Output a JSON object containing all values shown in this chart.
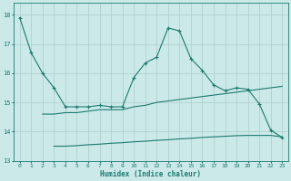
{
  "xlabel": "Humidex (Indice chaleur)",
  "bg_color": "#cce9e9",
  "line_color": "#1a7a6e",
  "grid_color": "#b0d0d0",
  "xlim": [
    -0.5,
    23.5
  ],
  "ylim": [
    13.0,
    18.4
  ],
  "yticks": [
    13,
    14,
    15,
    16,
    17,
    18
  ],
  "xticks": [
    0,
    1,
    2,
    3,
    4,
    5,
    6,
    7,
    8,
    9,
    10,
    11,
    12,
    13,
    14,
    15,
    16,
    17,
    18,
    19,
    20,
    21,
    22,
    23
  ],
  "line1_x": [
    0,
    1,
    2,
    3,
    4,
    5,
    6,
    7,
    8,
    9,
    10,
    11,
    12,
    13,
    14,
    15,
    16,
    17,
    18,
    19,
    20,
    21,
    22,
    23
  ],
  "line1_y": [
    17.9,
    16.7,
    16.0,
    15.5,
    14.85,
    14.85,
    14.85,
    14.9,
    14.85,
    14.85,
    15.85,
    16.35,
    16.55,
    17.55,
    17.45,
    16.5,
    16.1,
    15.6,
    15.4,
    15.5,
    15.45,
    14.95,
    14.05,
    13.8
  ],
  "line2_x": [
    2,
    3,
    4,
    5,
    6,
    7,
    8,
    9,
    10,
    11,
    12,
    13,
    14,
    15,
    16,
    17,
    18,
    19,
    20,
    21,
    22,
    23
  ],
  "line2_y": [
    14.6,
    14.6,
    14.65,
    14.65,
    14.7,
    14.75,
    14.75,
    14.75,
    14.85,
    14.9,
    15.0,
    15.05,
    15.1,
    15.15,
    15.2,
    15.25,
    15.3,
    15.35,
    15.4,
    15.45,
    15.5,
    15.55
  ],
  "line3_x": [
    3,
    4,
    5,
    6,
    7,
    8,
    9,
    10,
    11,
    12,
    13,
    14,
    15,
    16,
    17,
    18,
    19,
    20,
    21,
    22,
    23
  ],
  "line3_y": [
    13.5,
    13.5,
    13.52,
    13.55,
    13.57,
    13.6,
    13.62,
    13.65,
    13.67,
    13.7,
    13.72,
    13.75,
    13.77,
    13.8,
    13.82,
    13.84,
    13.86,
    13.87,
    13.87,
    13.87,
    13.82
  ]
}
